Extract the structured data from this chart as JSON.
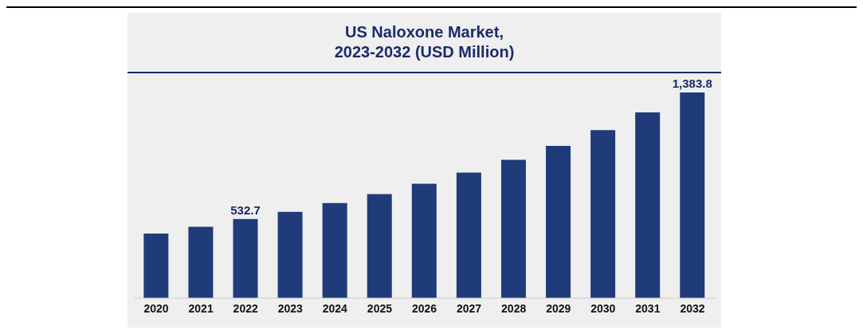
{
  "chart_data": {
    "type": "bar",
    "title": "US Naloxone Market,\n2023-2032 (USD Million)",
    "categories": [
      "2020",
      "2021",
      "2022",
      "2023",
      "2024",
      "2025",
      "2026",
      "2027",
      "2028",
      "2029",
      "2030",
      "2031",
      "2032"
    ],
    "values": [
      435,
      480,
      532.7,
      580,
      640,
      700,
      770,
      845,
      930,
      1025,
      1130,
      1250,
      1383.8
    ],
    "value_labels": [
      null,
      null,
      "532.7",
      null,
      null,
      null,
      null,
      null,
      null,
      null,
      null,
      null,
      "1,383.8"
    ],
    "color": "#1f3b7a",
    "grid": false,
    "legend": false
  }
}
